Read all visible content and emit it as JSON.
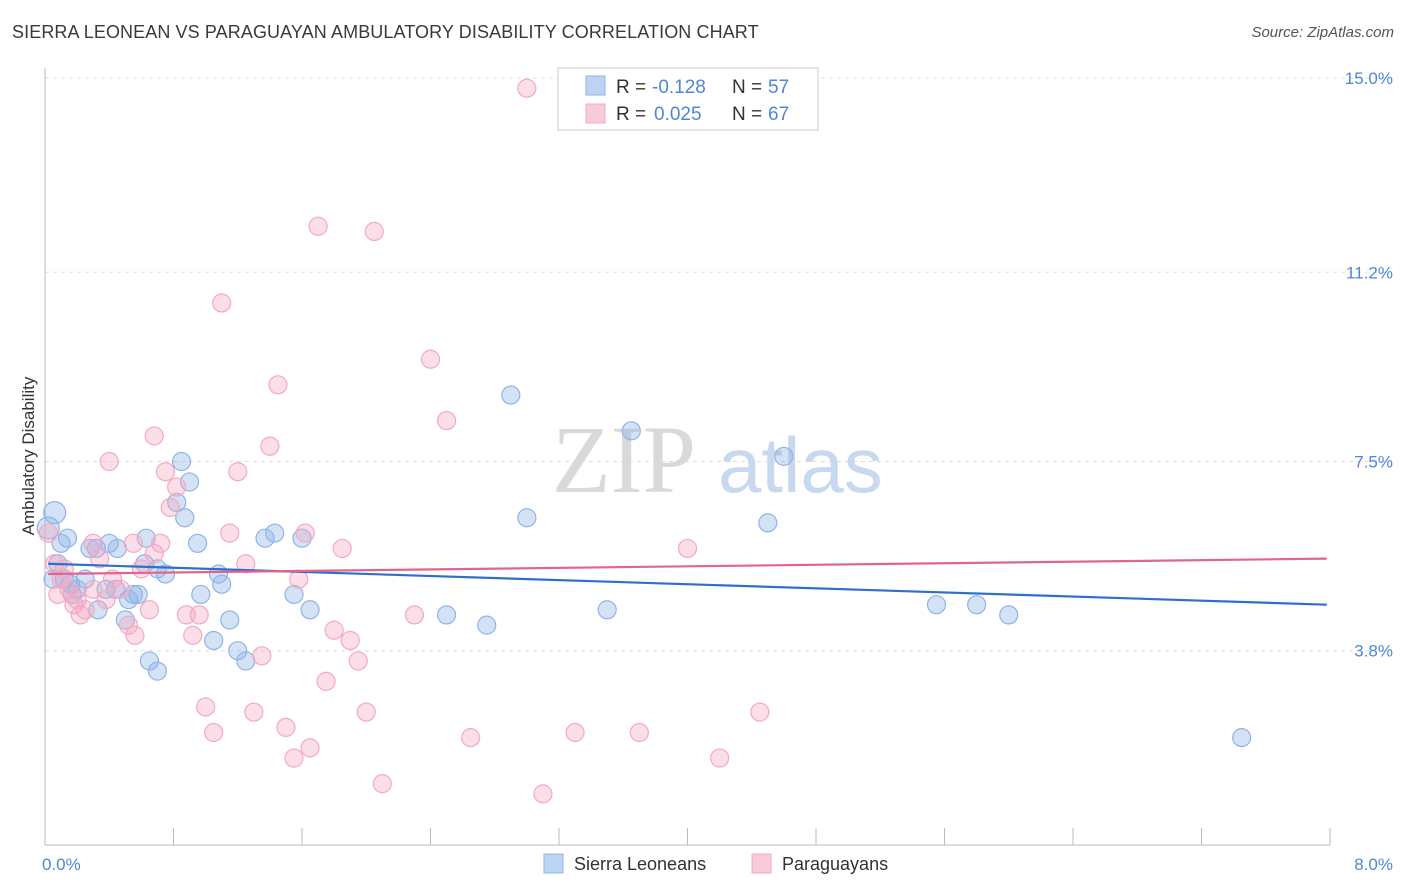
{
  "header": {
    "title": "SIERRA LEONEAN VS PARAGUAYAN AMBULATORY DISABILITY CORRELATION CHART",
    "source": "Source: ZipAtlas.com"
  },
  "watermark": {
    "zip": "ZIP",
    "atlas": "atlas"
  },
  "chart_data": {
    "type": "scatter",
    "ylabel": "Ambulatory Disability",
    "xlim": [
      0,
      8.0
    ],
    "ylim": [
      0,
      15.0
    ],
    "x_tick_labels": [
      "0.0%",
      "8.0%"
    ],
    "y_ticks": [
      3.8,
      7.5,
      11.2,
      15.0
    ],
    "y_tick_labels": [
      "3.8%",
      "7.5%",
      "11.2%",
      "15.0%"
    ],
    "grid": true,
    "legend": {
      "placement": "top-center",
      "rows": [
        {
          "r_label": "R =",
          "r_value": "-0.128",
          "n_label": "N =",
          "n_value": "57"
        },
        {
          "r_label": "R =",
          "r_value": "0.025",
          "n_label": "N =",
          "n_value": "67"
        }
      ]
    },
    "series": [
      {
        "name": "Sierra Leoneans",
        "color": "#8fb4e8",
        "line_color": "#2f6fcc",
        "trend": [
          [
            0.02,
            5.5
          ],
          [
            7.98,
            4.7
          ]
        ],
        "points": [
          [
            0.06,
            6.5
          ],
          [
            0.02,
            6.2
          ],
          [
            0.1,
            5.9
          ],
          [
            0.14,
            6.0
          ],
          [
            0.08,
            5.5
          ],
          [
            0.25,
            5.2
          ],
          [
            0.32,
            5.8
          ],
          [
            0.4,
            5.9
          ],
          [
            0.12,
            5.2
          ],
          [
            0.17,
            4.9
          ],
          [
            0.2,
            5.0
          ],
          [
            0.28,
            5.8
          ],
          [
            0.33,
            4.6
          ],
          [
            0.38,
            5.0
          ],
          [
            0.44,
            5.0
          ],
          [
            0.52,
            4.8
          ],
          [
            0.58,
            4.9
          ],
          [
            0.63,
            6.0
          ],
          [
            0.7,
            5.4
          ],
          [
            0.75,
            5.3
          ],
          [
            0.82,
            6.7
          ],
          [
            0.9,
            7.1
          ],
          [
            0.87,
            6.4
          ],
          [
            0.95,
            5.9
          ],
          [
            0.97,
            4.9
          ],
          [
            1.05,
            4.0
          ],
          [
            1.1,
            5.1
          ],
          [
            1.15,
            4.4
          ],
          [
            1.2,
            3.8
          ],
          [
            1.25,
            3.6
          ],
          [
            1.37,
            6.0
          ],
          [
            1.43,
            6.1
          ],
          [
            1.55,
            4.9
          ],
          [
            1.6,
            6.0
          ],
          [
            1.65,
            4.6
          ],
          [
            1.08,
            5.3
          ],
          [
            0.65,
            3.6
          ],
          [
            0.7,
            3.4
          ],
          [
            0.5,
            4.4
          ],
          [
            0.55,
            4.9
          ],
          [
            0.45,
            5.8
          ],
          [
            0.62,
            5.5
          ],
          [
            0.16,
            5.1
          ],
          [
            0.05,
            5.2
          ],
          [
            2.5,
            4.5
          ],
          [
            2.75,
            4.3
          ],
          [
            2.9,
            8.8
          ],
          [
            3.0,
            6.4
          ],
          [
            3.5,
            4.6
          ],
          [
            3.65,
            8.1
          ],
          [
            4.5,
            6.3
          ],
          [
            4.6,
            7.6
          ],
          [
            5.55,
            4.7
          ],
          [
            5.8,
            4.7
          ],
          [
            6.0,
            4.5
          ],
          [
            7.45,
            2.1
          ],
          [
            0.85,
            7.5
          ]
        ]
      },
      {
        "name": "Paraguayans",
        "color": "#f4a9c1",
        "line_color": "#e0648f",
        "trend": [
          [
            0.02,
            5.3
          ],
          [
            7.98,
            5.6
          ]
        ],
        "points": [
          [
            0.02,
            6.1
          ],
          [
            0.06,
            5.5
          ],
          [
            0.1,
            5.2
          ],
          [
            0.15,
            5.0
          ],
          [
            0.18,
            4.7
          ],
          [
            0.22,
            4.5
          ],
          [
            0.25,
            4.6
          ],
          [
            0.3,
            5.0
          ],
          [
            0.34,
            5.6
          ],
          [
            0.38,
            4.8
          ],
          [
            0.42,
            5.2
          ],
          [
            0.47,
            5.0
          ],
          [
            0.52,
            4.3
          ],
          [
            0.56,
            4.1
          ],
          [
            0.6,
            5.4
          ],
          [
            0.65,
            4.6
          ],
          [
            0.68,
            5.7
          ],
          [
            0.72,
            5.9
          ],
          [
            0.78,
            6.6
          ],
          [
            0.82,
            7.0
          ],
          [
            0.88,
            4.5
          ],
          [
            0.92,
            4.1
          ],
          [
            0.96,
            4.5
          ],
          [
            1.0,
            2.7
          ],
          [
            1.05,
            2.2
          ],
          [
            1.1,
            10.6
          ],
          [
            1.15,
            6.1
          ],
          [
            1.2,
            7.3
          ],
          [
            1.25,
            5.5
          ],
          [
            1.3,
            2.6
          ],
          [
            1.35,
            3.7
          ],
          [
            1.4,
            7.8
          ],
          [
            1.45,
            9.0
          ],
          [
            1.5,
            2.3
          ],
          [
            1.55,
            1.7
          ],
          [
            1.58,
            5.2
          ],
          [
            1.62,
            6.1
          ],
          [
            1.7,
            12.1
          ],
          [
            1.75,
            3.2
          ],
          [
            1.8,
            4.2
          ],
          [
            1.85,
            5.8
          ],
          [
            1.9,
            4.0
          ],
          [
            1.95,
            3.6
          ],
          [
            2.0,
            2.6
          ],
          [
            2.05,
            12.0
          ],
          [
            2.1,
            1.2
          ],
          [
            2.3,
            4.5
          ],
          [
            2.4,
            9.5
          ],
          [
            2.5,
            8.3
          ],
          [
            2.65,
            2.1
          ],
          [
            3.0,
            14.8
          ],
          [
            3.1,
            1.0
          ],
          [
            3.3,
            2.2
          ],
          [
            3.5,
            14.3
          ],
          [
            3.7,
            2.2
          ],
          [
            4.0,
            5.8
          ],
          [
            4.2,
            1.7
          ],
          [
            4.45,
            2.6
          ],
          [
            0.4,
            7.5
          ],
          [
            0.3,
            5.9
          ],
          [
            0.68,
            8.0
          ],
          [
            0.75,
            7.3
          ],
          [
            0.2,
            4.8
          ],
          [
            0.12,
            5.4
          ],
          [
            0.08,
            4.9
          ],
          [
            1.65,
            1.9
          ],
          [
            0.55,
            5.9
          ]
        ]
      }
    ]
  }
}
